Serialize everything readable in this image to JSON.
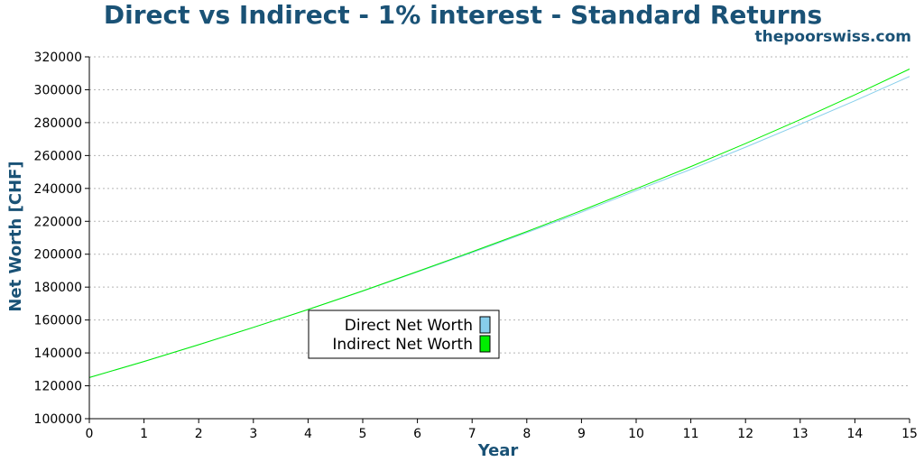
{
  "chart_data": {
    "type": "line",
    "title": "Direct vs Indirect - 1% interest - Standard Returns",
    "subtitle": "thepoorswiss.com",
    "xlabel": "Year",
    "ylabel": "Net Worth [CHF]",
    "xlim": [
      0,
      15
    ],
    "ylim": [
      100000,
      320000
    ],
    "x_ticks": [
      0,
      1,
      2,
      3,
      4,
      5,
      6,
      7,
      8,
      9,
      10,
      11,
      12,
      13,
      14,
      15
    ],
    "y_ticks": [
      100000,
      120000,
      140000,
      160000,
      180000,
      200000,
      220000,
      240000,
      260000,
      280000,
      300000,
      320000
    ],
    "grid": "horizontal dotted",
    "legend_position": "center-left",
    "x": [
      0,
      1,
      2,
      3,
      4,
      5,
      6,
      7,
      8,
      9,
      10,
      11,
      12,
      13,
      14,
      15
    ],
    "series": [
      {
        "name": "Direct Net Worth",
        "color": "#87ceeb",
        "values": [
          125000,
          134800,
          145000,
          155500,
          166400,
          177600,
          189200,
          201000,
          213100,
          225500,
          238700,
          251600,
          265100,
          279000,
          293300,
          308100
        ]
      },
      {
        "name": "Indirect Net Worth",
        "color": "#00ee00",
        "values": [
          125000,
          134800,
          145000,
          155500,
          166400,
          177700,
          189500,
          201500,
          213800,
          226500,
          239800,
          253300,
          267300,
          281800,
          296900,
          312600
        ]
      }
    ]
  }
}
